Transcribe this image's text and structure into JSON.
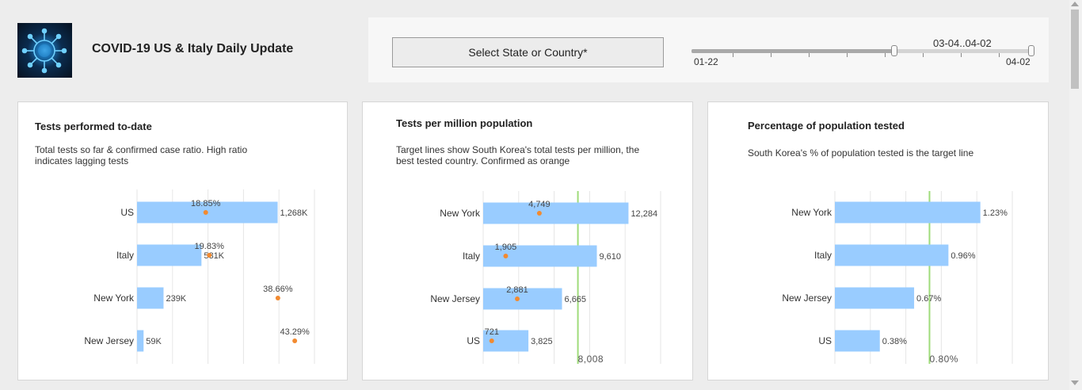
{
  "header": {
    "title": "COVID-19 US & Italy Daily Update",
    "logo_icon": "virus-icon"
  },
  "controls": {
    "select_label": "Select State or Country*",
    "slider": {
      "range_label": "03-04..04-02",
      "min_label": "01-22",
      "max_label": "04-02",
      "selected_start_fraction": 0.59,
      "selected_end_fraction": 1.0
    }
  },
  "colors": {
    "bar": "#99ccff",
    "dot": "#f28a30",
    "target": "#9fdc7a",
    "grid": "#e6e6e6"
  },
  "panels": [
    {
      "title": "Tests performed to-date",
      "subtitle_lines": [
        "Total tests so far & confirmed case ratio. High ratio",
        "indicates lagging tests"
      ]
    },
    {
      "title": "Tests per million population",
      "subtitle_lines": [
        "Target lines show South Korea's total tests per million, the",
        "best tested country. Confirmed as orange"
      ]
    },
    {
      "title": "Percentage of population tested",
      "subtitle_lines": [
        "South Korea's % of population tested is the target line"
      ]
    }
  ],
  "chart_data": [
    {
      "type": "bar",
      "orientation": "horizontal",
      "categories": [
        "US",
        "Italy",
        "New York",
        "New Jersey"
      ],
      "series": [
        {
          "values": [
            1268000,
            581000,
            239000,
            59000
          ],
          "labels": [
            "1,268K",
            "581K",
            "239K",
            "59K"
          ]
        },
        {
          "values": [
            18.85,
            19.83,
            38.66,
            43.29
          ],
          "labels": [
            "18.85%",
            "19.83%",
            "38.66%",
            "43.29%"
          ]
        }
      ],
      "xlim": [
        0,
        1600000
      ],
      "dot_xlim": [
        0,
        50
      ],
      "grid": true
    },
    {
      "type": "bar",
      "orientation": "horizontal",
      "categories": [
        "New York",
        "Italy",
        "New Jersey",
        "US"
      ],
      "series": [
        {
          "values": [
            12284,
            9610,
            6665,
            3825
          ],
          "labels": [
            "12,284",
            "9,610",
            "6,665",
            "3,825"
          ]
        },
        {
          "values": [
            4749,
            1905,
            2881,
            721
          ],
          "labels": [
            "4,749",
            "1,905",
            "2,881",
            "721"
          ]
        }
      ],
      "target": {
        "value": 8008,
        "label": "8,008"
      },
      "xlim": [
        0,
        15000
      ],
      "grid": true
    },
    {
      "type": "bar",
      "orientation": "horizontal",
      "categories": [
        "New York",
        "Italy",
        "New Jersey",
        "US"
      ],
      "series": [
        {
          "values": [
            1.23,
            0.96,
            0.67,
            0.38
          ],
          "labels": [
            "1.23%",
            "0.96%",
            "0.67%",
            "0.38%"
          ]
        }
      ],
      "target": {
        "value": 0.8,
        "label": "0.80%"
      },
      "xlim": [
        0,
        1.5
      ],
      "grid": true
    }
  ]
}
